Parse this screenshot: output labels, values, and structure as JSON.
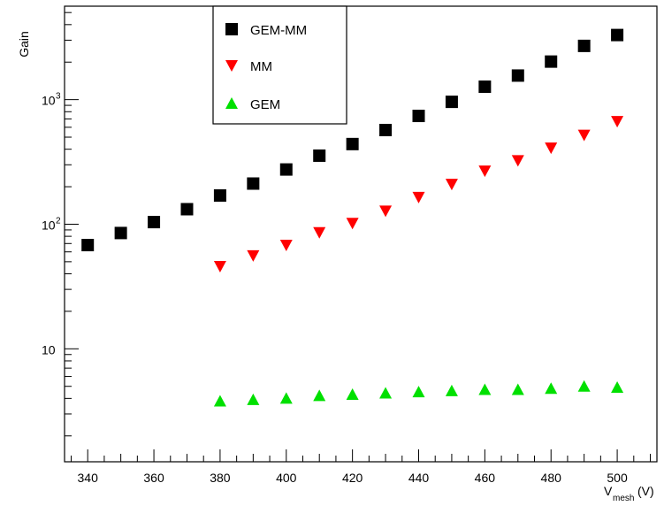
{
  "chart_data": {
    "type": "scatter",
    "x_scale": "linear",
    "y_scale": "log",
    "xlim": [
      333,
      512
    ],
    "ylim": [
      1.24,
      5623
    ],
    "grid": false,
    "legend_position": "top-center",
    "ylabel": "Gain",
    "xlabel": {
      "main": "V",
      "sub": "mesh",
      "unit": "(V)"
    },
    "x_ticks": [
      340,
      360,
      380,
      400,
      420,
      440,
      460,
      480,
      500
    ],
    "y_ticks": [
      {
        "value": 10,
        "base": "10",
        "exp": ""
      },
      {
        "value": 100,
        "base": "10",
        "exp": "2"
      },
      {
        "value": 1000,
        "base": "10",
        "exp": "3"
      }
    ],
    "series": [
      {
        "name": "GEM-MM",
        "marker": "square",
        "color": "#000000",
        "x": [
          340,
          350,
          360,
          370,
          380,
          390,
          400,
          410,
          420,
          430,
          440,
          450,
          460,
          470,
          480,
          490,
          500
        ],
        "y": [
          68,
          85,
          104,
          132,
          170,
          212,
          275,
          355,
          440,
          570,
          740,
          960,
          1270,
          1560,
          2020,
          2700,
          3300
        ]
      },
      {
        "name": "MM",
        "marker": "triangle-down",
        "color": "#ff0000",
        "x": [
          380,
          390,
          400,
          410,
          420,
          430,
          440,
          450,
          460,
          470,
          480,
          490,
          500
        ],
        "y": [
          46,
          56,
          68,
          86,
          102,
          128,
          165,
          210,
          268,
          325,
          410,
          520,
          670
        ]
      },
      {
        "name": "GEM",
        "marker": "triangle-up",
        "color": "#00e000",
        "x": [
          380,
          390,
          400,
          410,
          420,
          430,
          440,
          450,
          460,
          470,
          480,
          490,
          500
        ],
        "y": [
          3.8,
          3.9,
          4.0,
          4.2,
          4.3,
          4.4,
          4.5,
          4.6,
          4.7,
          4.7,
          4.8,
          5.0,
          4.9
        ]
      }
    ]
  }
}
